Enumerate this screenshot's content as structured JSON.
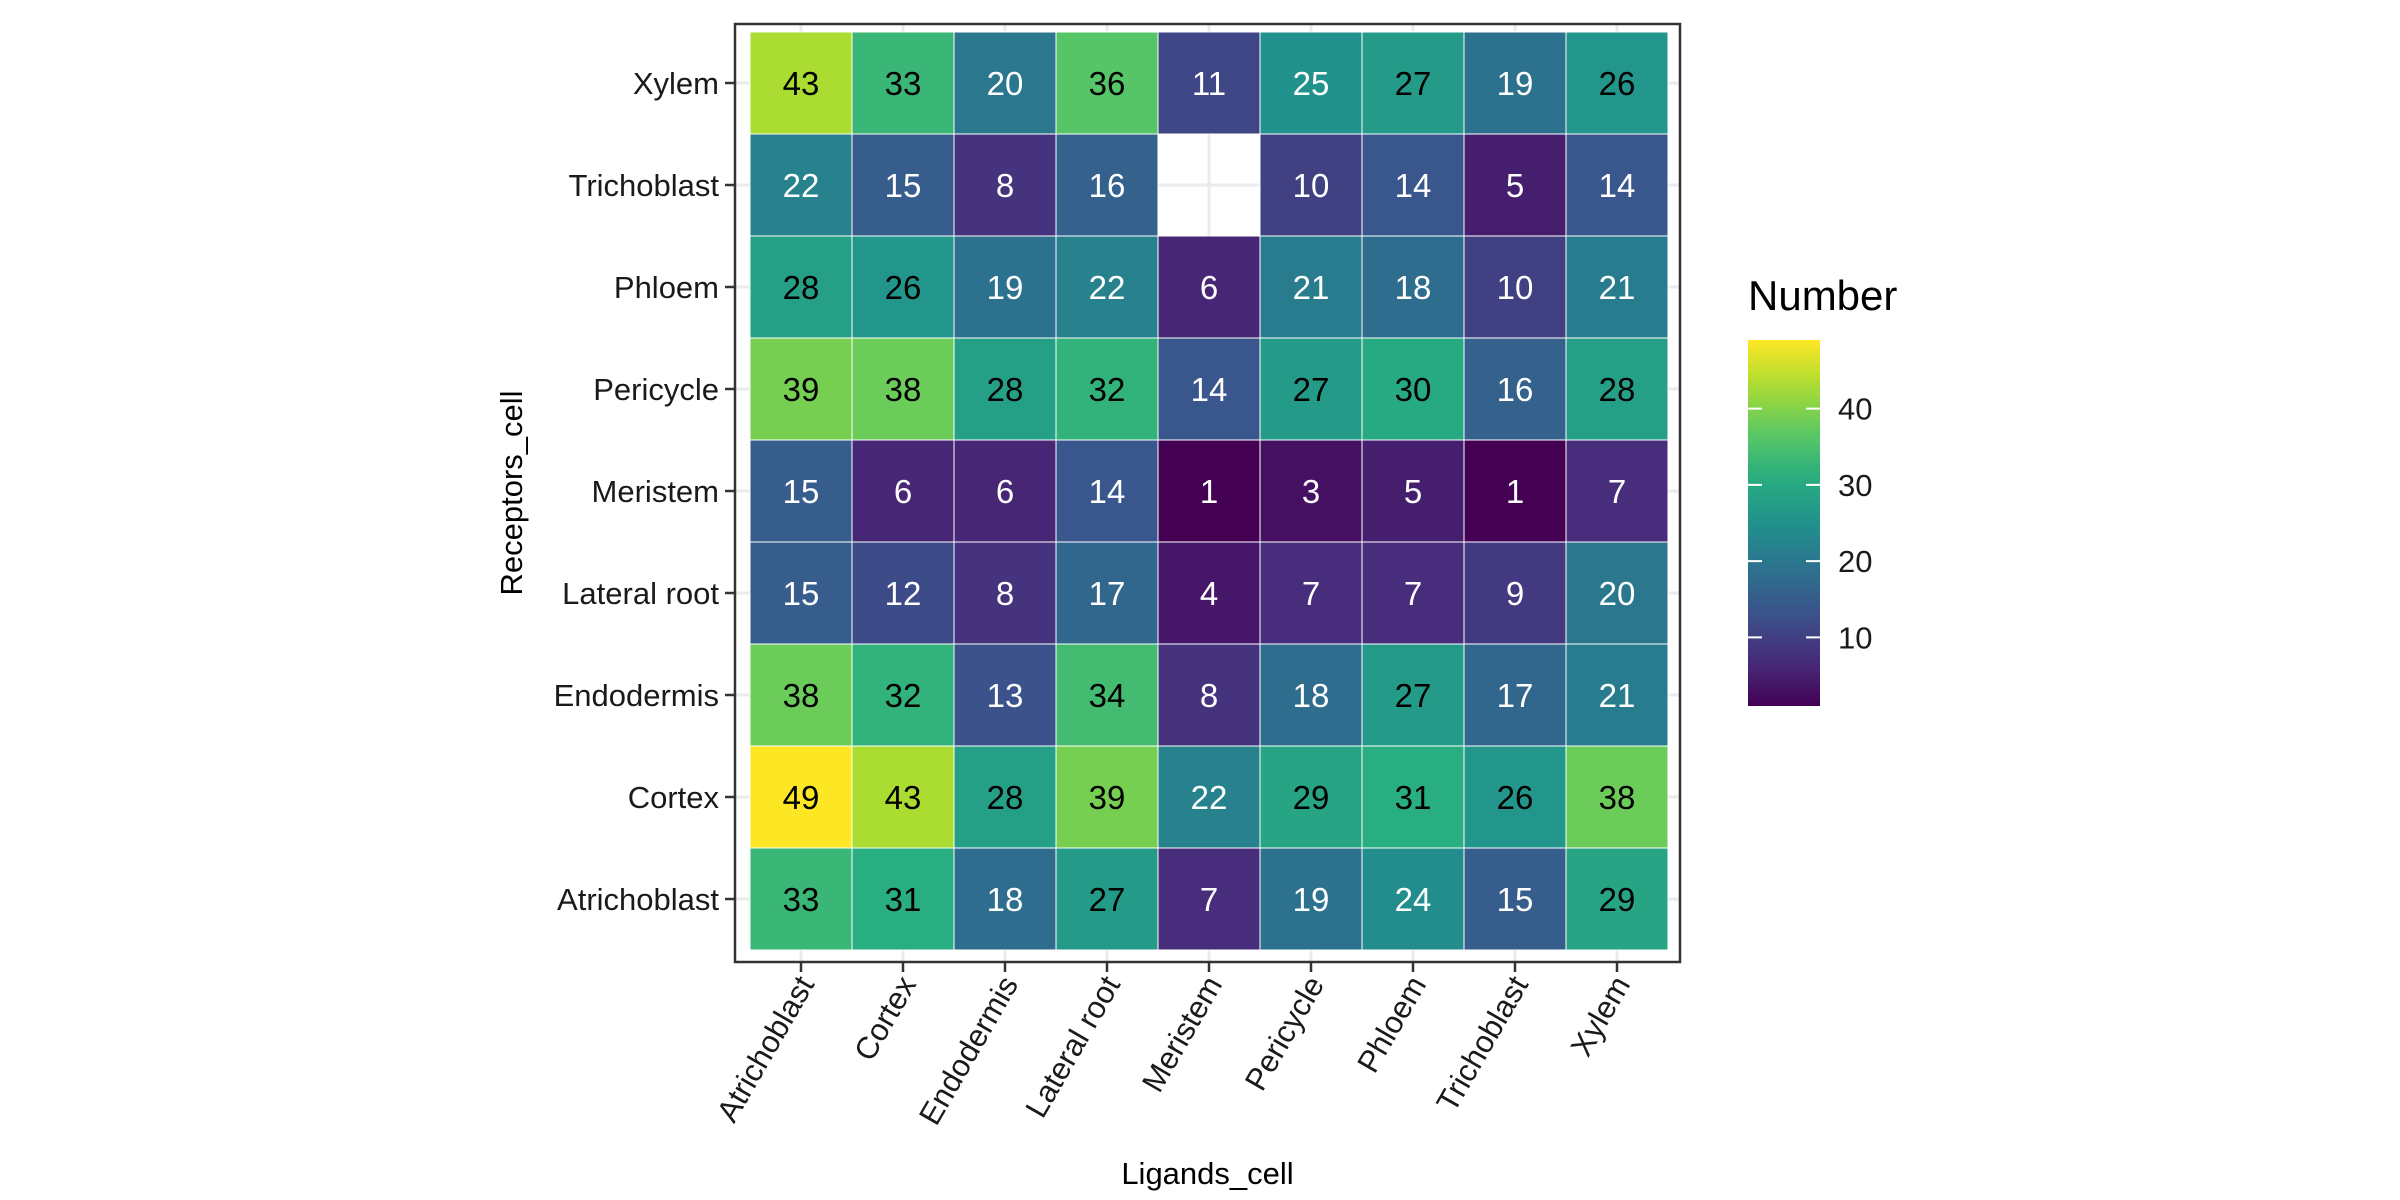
{
  "chart_data": {
    "type": "heatmap",
    "xlabel": "Ligands_cell",
    "ylabel": "Receptors_cell",
    "x_categories": [
      "Atrichoblast",
      "Cortex",
      "Endodermis",
      "Lateral root",
      "Meristem",
      "Pericycle",
      "Phloem",
      "Trichoblast",
      "Xylem"
    ],
    "y_categories": [
      "Atrichoblast",
      "Cortex",
      "Endodermis",
      "Lateral root",
      "Meristem",
      "Pericycle",
      "Phloem",
      "Trichoblast",
      "Xylem"
    ],
    "values": [
      [
        33,
        31,
        18,
        27,
        7,
        19,
        24,
        15,
        29
      ],
      [
        49,
        43,
        28,
        39,
        22,
        29,
        31,
        26,
        38
      ],
      [
        38,
        32,
        13,
        34,
        8,
        18,
        27,
        17,
        21
      ],
      [
        15,
        12,
        8,
        17,
        4,
        7,
        7,
        9,
        20
      ],
      [
        15,
        6,
        6,
        14,
        1,
        3,
        5,
        1,
        7
      ],
      [
        39,
        38,
        28,
        32,
        14,
        27,
        30,
        16,
        28
      ],
      [
        28,
        26,
        19,
        22,
        6,
        21,
        18,
        10,
        21
      ],
      [
        22,
        15,
        8,
        16,
        null,
        10,
        14,
        5,
        14
      ],
      [
        43,
        33,
        20,
        36,
        11,
        25,
        27,
        19,
        26
      ]
    ],
    "colorscale": "viridis",
    "value_range": [
      1,
      49
    ],
    "legend": {
      "title": "Number",
      "ticks": [
        10,
        20,
        30,
        40
      ],
      "placement": "right"
    },
    "grid": true
  }
}
